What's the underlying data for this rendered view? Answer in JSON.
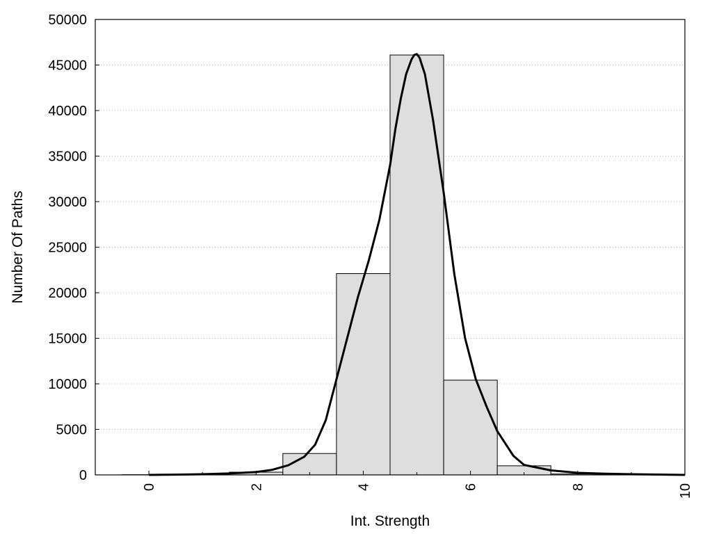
{
  "chart_data": {
    "type": "bar",
    "xlabel": "Int. Strength",
    "ylabel": "Number Of Paths",
    "xlim": [
      -1,
      10
    ],
    "ylim": [
      0,
      50000
    ],
    "x_ticks": [
      0,
      2,
      4,
      6,
      8,
      10
    ],
    "y_ticks": [
      0,
      5000,
      10000,
      15000,
      20000,
      25000,
      30000,
      35000,
      40000,
      45000,
      50000
    ],
    "grid": "horizontal-dotted",
    "bin_width": 1,
    "bars": [
      {
        "x": 0,
        "value": 20
      },
      {
        "x": 1,
        "value": 60
      },
      {
        "x": 2,
        "value": 300
      },
      {
        "x": 3,
        "value": 2350
      },
      {
        "x": 4,
        "value": 22100
      },
      {
        "x": 5,
        "value": 46100
      },
      {
        "x": 6,
        "value": 10400
      },
      {
        "x": 7,
        "value": 1000
      },
      {
        "x": 8,
        "value": 100
      },
      {
        "x": 9,
        "value": 30
      }
    ],
    "fit_curve": {
      "x": [
        0,
        0.5,
        1,
        1.5,
        2,
        2.3,
        2.6,
        2.9,
        3.1,
        3.3,
        3.5,
        3.7,
        3.9,
        4.1,
        4.3,
        4.5,
        4.6,
        4.7,
        4.8,
        4.9,
        4.95,
        5.0,
        5.05,
        5.15,
        5.3,
        5.5,
        5.7,
        5.9,
        6.1,
        6.3,
        6.5,
        6.8,
        7.0,
        7.5,
        8.0,
        8.5,
        9,
        9.5,
        10
      ],
      "y": [
        0,
        30,
        80,
        160,
        310,
        560,
        1050,
        2000,
        3300,
        6000,
        10500,
        15000,
        19500,
        23500,
        28000,
        34000,
        38000,
        41300,
        44000,
        45600,
        46100,
        46200,
        45800,
        44000,
        39000,
        31000,
        22000,
        15000,
        10500,
        7500,
        4800,
        2100,
        1100,
        500,
        230,
        130,
        80,
        40,
        0
      ]
    }
  }
}
